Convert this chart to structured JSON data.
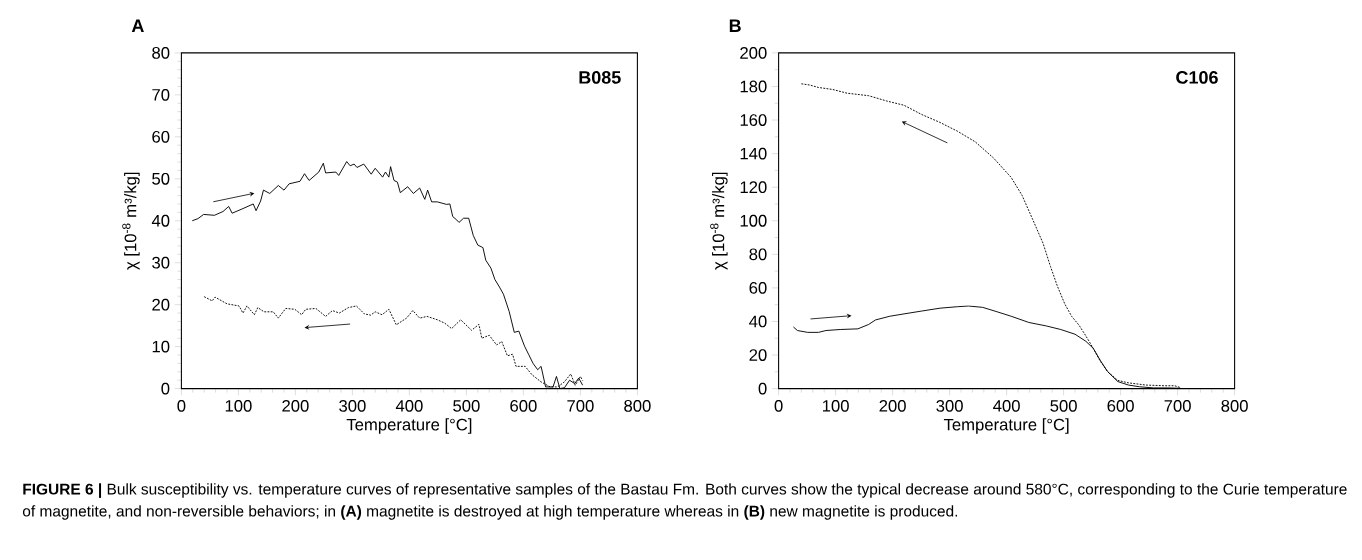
{
  "chart_data": [
    {
      "type": "line",
      "title": "A",
      "xlabel": "Temperature [°C]",
      "ylabel": "χ [10$^{-8}$ m³/kg]",
      "annotations": [
        "B085",
        "**FIGURE 6 |** Bulk susceptibility vs. temperature curves of representative samples of the Bastau Fm. Both curves show the typical decrease around 580°C, corresponding to the Curie temperature of magnetite, and non-reversible behaviors; in **(A)** magnetite is destroyed at high temperature whereas in **(B)** new magnetite is produced."
      ],
      "xlim": [
        0,
        800
      ],
      "ylim": [
        0,
        80
      ],
      "xticks": [
        0,
        100,
        200,
        300,
        400,
        500,
        600,
        700,
        800
      ],
      "yticks": [
        0,
        10,
        20,
        30,
        40,
        50,
        60,
        70,
        80
      ],
      "grid": false,
      "marker": "none",
      "series": [
        {
          "color": "#000000",
          "line_style": "solid",
          "x": [
            19,
            29,
            39,
            58,
            73,
            83,
            89,
            108,
            126,
            131,
            139,
            144,
            155,
            170,
            180,
            189,
            208,
            216,
            224,
            241,
            249,
            253,
            271,
            276,
            290,
            296,
            303,
            308,
            320,
            333,
            340,
            353,
            358,
            364,
            367,
            373,
            379,
            384,
            397,
            407,
            418,
            427,
            432,
            439,
            449,
            465,
            471,
            476,
            483,
            487,
            495,
            504,
            512,
            520,
            529,
            534,
            543,
            550,
            558,
            565,
            575,
            584,
            592,
            602,
            609,
            617,
            625,
            631,
            639,
            652,
            658,
            664,
            672,
            681,
            690,
            697,
            704
          ],
          "values": [
            40,
            40.5,
            41.5,
            41.3,
            42.2,
            43.4,
            41.8,
            42.9,
            44,
            42.4,
            44.7,
            47.3,
            46.5,
            48.4,
            47.3,
            48.8,
            49.4,
            51.2,
            49.6,
            51.6,
            53.7,
            51.4,
            51.6,
            50.8,
            54.1,
            53.1,
            53.5,
            52.7,
            53.5,
            51.1,
            52.5,
            50.4,
            51.6,
            50.4,
            52.9,
            49.6,
            49.2,
            46.7,
            48.1,
            46.5,
            47.8,
            45.1,
            47.3,
            44.5,
            44.5,
            43.9,
            44,
            41,
            40.2,
            39.6,
            40.6,
            40.6,
            36.5,
            34.2,
            33.6,
            30.6,
            28.7,
            26,
            24.2,
            22.5,
            18.4,
            13.4,
            13.7,
            10.1,
            8.2,
            6,
            4.5,
            5.3,
            0.4,
            0.4,
            2.9,
            0,
            0.2,
            2,
            1.2,
            2.5,
            0.8
          ]
        },
        {
          "color": "#000000",
          "line_style": "dotted",
          "x": [
            40,
            54,
            59,
            80,
            101,
            108,
            115,
            128,
            134,
            145,
            161,
            170,
            183,
            199,
            211,
            218,
            236,
            253,
            265,
            277,
            293,
            307,
            321,
            332,
            340,
            352,
            364,
            377,
            395,
            406,
            418,
            431,
            449,
            462,
            474,
            490,
            509,
            522,
            527,
            540,
            553,
            562,
            572,
            581,
            587,
            603,
            615,
            631,
            647,
            660,
            672,
            683,
            691,
            700,
            704
          ],
          "values": [
            21.9,
            20.9,
            21.8,
            20.2,
            19.7,
            18,
            19.7,
            17.6,
            19.3,
            18.3,
            18.3,
            16.8,
            19.1,
            18.9,
            17.6,
            18.9,
            19.1,
            17.2,
            18.6,
            18,
            19.3,
            19.7,
            17.8,
            17.5,
            18.3,
            17.6,
            18.9,
            15.2,
            16.8,
            18.6,
            16.8,
            17.2,
            16.4,
            15.6,
            14.3,
            16.4,
            13.9,
            15.3,
            12,
            12.7,
            10.4,
            11.2,
            7.8,
            8.2,
            5.3,
            5.3,
            3.3,
            1.6,
            0.4,
            0.4,
            1.6,
            3.5,
            0.8,
            2.9,
            1.9
          ]
        }
      ]
    },
    {
      "type": "line",
      "title": "B",
      "xlabel": "Temperature [°C]",
      "ylabel": "χ [10$^{-8}$ m³/kg]",
      "annotations": [
        "C106"
      ],
      "xlim": [
        0,
        800
      ],
      "ylim": [
        0,
        200
      ],
      "xticks": [
        0,
        100,
        200,
        300,
        400,
        500,
        600,
        700,
        800
      ],
      "yticks": [
        0,
        20,
        40,
        60,
        80,
        100,
        120,
        140,
        160,
        180,
        200
      ],
      "grid": false,
      "marker": "none",
      "series": [
        {
          "color": "#000000",
          "line_style": "solid",
          "x": [
            26,
            33,
            51,
            70,
            83,
            108,
            139,
            158,
            170,
            195,
            220,
            251,
            283,
            314,
            333,
            358,
            383,
            408,
            439,
            470,
            495,
            520,
            539,
            552,
            564,
            577,
            595,
            614,
            633,
            658,
            683,
            705
          ],
          "values": [
            36.7,
            34.6,
            33.5,
            33.5,
            34.6,
            35.2,
            35.6,
            38.2,
            40.9,
            43.1,
            44.5,
            46.2,
            47.9,
            48.8,
            49.2,
            48.4,
            45.8,
            43.1,
            39.4,
            37.3,
            35.2,
            32.4,
            28.2,
            24,
            17,
            10.2,
            4.2,
            2.1,
            1.1,
            0.4,
            0.4,
            0.2
          ]
        },
        {
          "color": "#000000",
          "line_style": "dotted",
          "x": [
            40,
            54,
            70,
            95,
            120,
            158,
            189,
            220,
            251,
            283,
            314,
            345,
            377,
            408,
            427,
            445,
            464,
            477,
            489,
            502,
            514,
            527,
            539,
            552,
            564,
            577,
            595,
            614,
            645,
            677,
            695,
            705
          ],
          "values": [
            181.6,
            180.9,
            179.4,
            178.2,
            176,
            174.5,
            171.4,
            168.8,
            163.3,
            158.6,
            153.3,
            147,
            137.4,
            125.8,
            115.2,
            101.4,
            86.5,
            72.7,
            61.1,
            50.5,
            43.1,
            37.8,
            31.4,
            24,
            16.5,
            10.2,
            4.9,
            3.4,
            2.1,
            1.7,
            1.7,
            0.6
          ]
        }
      ]
    }
  ]
}
